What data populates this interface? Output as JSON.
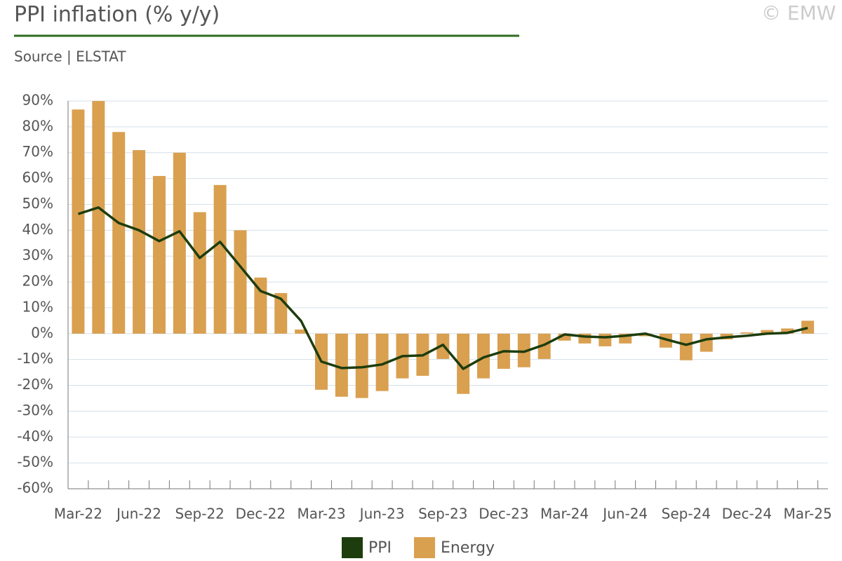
{
  "chart_data": {
    "type": "bar-line",
    "title": "PPI inflation (% y/y)",
    "subtitle": "Source | ELSTAT",
    "copyright": "© EMW",
    "categories": [
      "Mar-22",
      null,
      null,
      "Jun-22",
      null,
      null,
      "Sep-22",
      null,
      null,
      "Dec-22",
      null,
      null,
      "Mar-23",
      null,
      null,
      "Jun-23",
      null,
      null,
      "Sep-23",
      null,
      null,
      "Dec-23",
      null,
      null,
      "Mar-24",
      null,
      null,
      "Jun-24",
      null,
      null,
      "Sep-24",
      null,
      null,
      "Dec-24",
      null,
      null,
      "Mar-25"
    ],
    "series": [
      {
        "name": "PPI",
        "type": "line",
        "color": "#1d3d0e",
        "values": [
          46.3,
          48.8,
          42.8,
          40,
          35.8,
          39.6,
          29.3,
          35.5,
          26,
          16.5,
          13.5,
          4.9,
          -10.8,
          -13.3,
          -13,
          -11.9,
          -8.7,
          -8.4,
          -4.3,
          -13.6,
          -9.2,
          -6.8,
          -7,
          -4.3,
          -0.3,
          -1.1,
          -1.4,
          -0.8,
          0,
          -2.2,
          -4.3,
          -2.2,
          -1.4,
          -0.8,
          0,
          0.3,
          2.2
        ]
      },
      {
        "name": "Energy",
        "type": "bar",
        "color": "#d9a050",
        "values": [
          86.7,
          90,
          78,
          71,
          61,
          70,
          47,
          57.5,
          40,
          21.7,
          15.7,
          1.6,
          -21.7,
          -24.4,
          -24.9,
          -22.2,
          -17.3,
          -16.3,
          -9.8,
          -23.3,
          -17.3,
          -13.6,
          -13,
          -9.8,
          -2.7,
          -3.8,
          -4.9,
          -3.8,
          -1,
          -5.4,
          -10.3,
          -7,
          -2.2,
          0.5,
          1.4,
          2,
          5
        ]
      }
    ],
    "ylim": [
      -60,
      90
    ],
    "yticks": [
      {
        "value": -60,
        "label": "-60%"
      },
      {
        "value": -50,
        "label": "-50%"
      },
      {
        "value": -40,
        "label": "-40%"
      },
      {
        "value": -30,
        "label": "-30%"
      },
      {
        "value": -20,
        "label": "-20%"
      },
      {
        "value": -10,
        "label": "-10%"
      },
      {
        "value": 0,
        "label": "0%"
      },
      {
        "value": 10,
        "label": "10%"
      },
      {
        "value": 20,
        "label": "20%"
      },
      {
        "value": 30,
        "label": "30%"
      },
      {
        "value": 40,
        "label": "40%"
      },
      {
        "value": 50,
        "label": "50%"
      },
      {
        "value": 60,
        "label": "60%"
      },
      {
        "value": 70,
        "label": "70%"
      },
      {
        "value": 80,
        "label": "80%"
      },
      {
        "value": 90,
        "label": "90%"
      }
    ],
    "grid": true,
    "legend": "bottom"
  }
}
